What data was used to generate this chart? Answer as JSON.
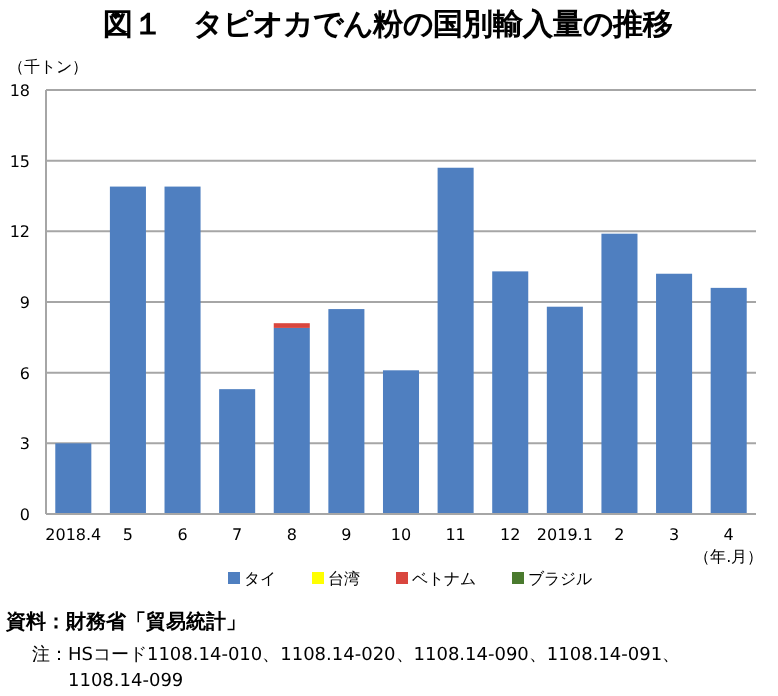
{
  "chart_data": {
    "type": "bar",
    "stacked": true,
    "title": "図１　タピオカでん粉の国別輸入量の推移",
    "ylabel": "（千トン）",
    "xlabel": "（年.月）",
    "categories": [
      "2018.4",
      "5",
      "6",
      "7",
      "8",
      "9",
      "10",
      "11",
      "12",
      "2019.1",
      "2",
      "3",
      "4"
    ],
    "series": [
      {
        "name": "タイ",
        "color": "#4f7fc0",
        "values": [
          3.0,
          13.9,
          13.9,
          5.3,
          7.9,
          8.7,
          6.1,
          14.7,
          10.3,
          8.8,
          11.9,
          10.2,
          9.6
        ]
      },
      {
        "name": "台湾",
        "color": "#ffff00",
        "values": [
          0,
          0,
          0,
          0,
          0,
          0,
          0,
          0,
          0,
          0,
          0,
          0,
          0
        ]
      },
      {
        "name": "ベトナム",
        "color": "#d9463e",
        "values": [
          0,
          0,
          0,
          0,
          0.2,
          0,
          0,
          0,
          0,
          0,
          0,
          0,
          0
        ]
      },
      {
        "name": "ブラジル",
        "color": "#4a7a2e",
        "values": [
          0,
          0,
          0,
          0,
          0,
          0,
          0,
          0,
          0,
          0,
          0,
          0,
          0
        ]
      }
    ],
    "ylim": [
      0,
      18
    ],
    "yticks": [
      0,
      3,
      6,
      9,
      12,
      15,
      18
    ],
    "grid": "y",
    "legend": "bottom",
    "annotations": [
      "資料：財務省「貿易統計」",
      "注：HSコード1108.14-010、1108.14-020、1108.14-090、1108.14-091、1108.14-099"
    ]
  }
}
